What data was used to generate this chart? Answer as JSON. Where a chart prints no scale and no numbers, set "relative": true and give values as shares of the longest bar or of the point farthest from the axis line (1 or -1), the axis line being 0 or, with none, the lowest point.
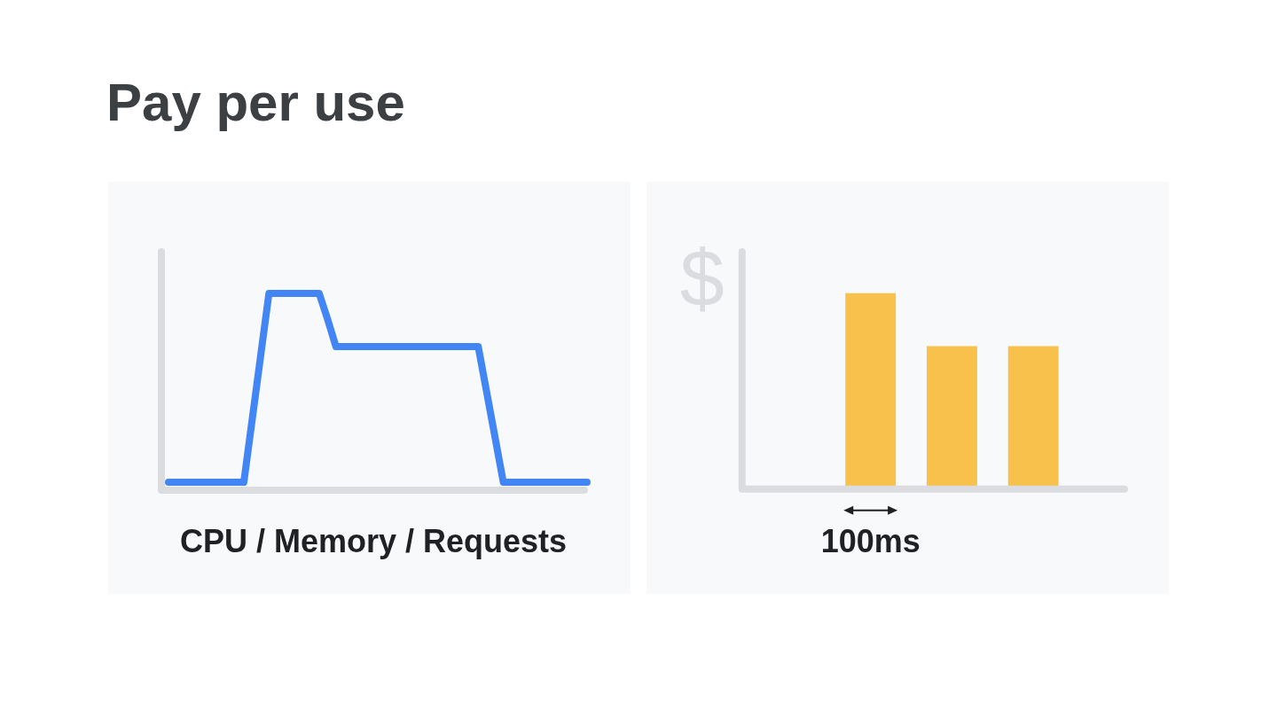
{
  "chart_data": [
    {
      "type": "line",
      "title": "Pay per use",
      "xlabel": "CPU / Memory / Requests",
      "relative": true,
      "categories": [
        null,
        null,
        null,
        null,
        null,
        null,
        null,
        null,
        null,
        null,
        null,
        null,
        null,
        null,
        null,
        null,
        null,
        null,
        null,
        null,
        null,
        null,
        null,
        null,
        null,
        null,
        null,
        null,
        null,
        null,
        null,
        null,
        null,
        null,
        null,
        null,
        null,
        null,
        null,
        null,
        null,
        null,
        null,
        null,
        null,
        null,
        null,
        null,
        null,
        null,
        null
      ],
      "series": [
        {
          "color": "#4285f4",
          "values": [
            0.04,
            0.04,
            0.04,
            0.04,
            0.04,
            0.04,
            0.04,
            0.04,
            0.04,
            0.04,
            0.36,
            0.68,
            1,
            1,
            1,
            1,
            1,
            1,
            1,
            0.87,
            0.73,
            0.73,
            0.73,
            0.73,
            0.73,
            0.73,
            0.73,
            0.73,
            0.73,
            0.73,
            0.73,
            0.73,
            0.73,
            0.73,
            0.73,
            0.73,
            0.73,
            0.73,
            0.5,
            0.27,
            0.04,
            0.04,
            0.04,
            0.04,
            0.04,
            0.04,
            0.04,
            0.04,
            0.04,
            0.04,
            0.04
          ]
        }
      ]
    },
    {
      "type": "bar",
      "ylabel": "$",
      "relative": true,
      "categories": [
        null,
        null,
        null
      ],
      "values": [
        1,
        0.73,
        0.73
      ],
      "color": "#f7c14b",
      "annotations": [
        "100ms"
      ]
    }
  ]
}
